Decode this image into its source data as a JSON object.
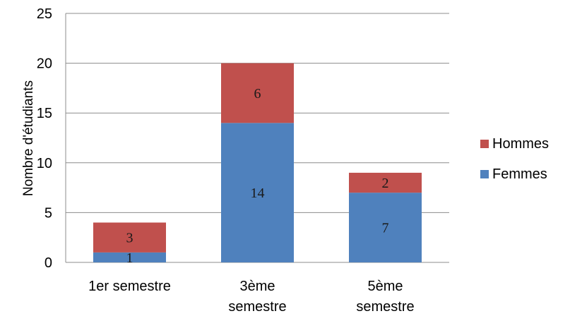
{
  "chart_data": {
    "type": "bar",
    "stacked": true,
    "categories": [
      "1er semestre",
      "3ème semestre",
      "5ème semestre"
    ],
    "series": [
      {
        "name": "Femmes",
        "values": [
          1,
          14,
          7
        ],
        "color": "#4f81bd"
      },
      {
        "name": "Hommes",
        "values": [
          3,
          6,
          2
        ],
        "color": "#c0504d"
      }
    ],
    "xlabel": "",
    "ylabel": "Nombre d'étudiants",
    "ylim": [
      0,
      25
    ],
    "yticks": [
      0,
      5,
      10,
      15,
      20,
      25
    ],
    "grid": true,
    "legend": "right",
    "data_labels": true
  }
}
